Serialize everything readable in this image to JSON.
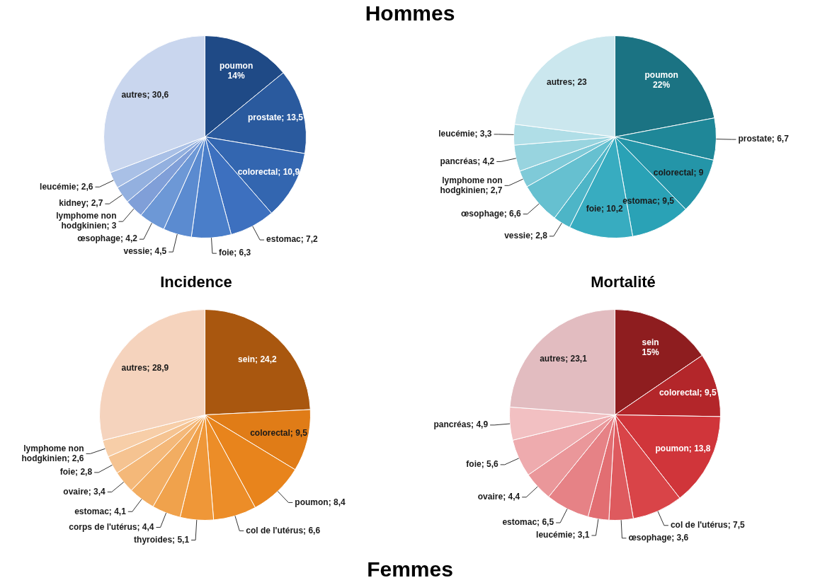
{
  "chart_data": [
    {
      "type": "pie",
      "categories": [
        "poumon",
        "prostate",
        "colorectal",
        "estomac",
        "foie",
        "vessie",
        "œsophage",
        "lymphome non hodgkinien",
        "kidney",
        "leucémie",
        "autres"
      ],
      "values": [
        14,
        13.5,
        10.9,
        7.2,
        6.3,
        4.5,
        4.2,
        3,
        2.7,
        2.6,
        30.6
      ],
      "value_labels": [
        "14%",
        "13,5",
        "10,9",
        "7,2",
        "6,3",
        "4,5",
        "4,2",
        "3",
        "2,7",
        "2,6",
        "30,6"
      ],
      "colors": [
        "#1f4a86",
        "#2a5a9e",
        "#3366b0",
        "#3d70bf",
        "#4a7ec9",
        "#5b8bd0",
        "#6d98d6",
        "#809fd8",
        "#93b0df",
        "#a9c0e6",
        "#c9d6ee"
      ]
    },
    {
      "type": "pie",
      "categories": [
        "poumon",
        "prostate",
        "colorectal",
        "estomac",
        "foie",
        "vessie",
        "œsophage",
        "lymphome non hodgkinien",
        "pancréas",
        "leucémie",
        "autres"
      ],
      "values": [
        22,
        6.7,
        9,
        9.5,
        10.2,
        2.8,
        6.6,
        2.7,
        4.2,
        3.3,
        23
      ],
      "value_labels": [
        "22%",
        "6,7",
        "9",
        "9,5",
        "10,2",
        "2,8",
        "6,6",
        "2,7",
        "4,2",
        "3,3",
        "23"
      ],
      "colors": [
        "#1b7383",
        "#1f8798",
        "#2495a8",
        "#2aa2b6",
        "#38acc0",
        "#4db5c7",
        "#66c0d0",
        "#7fcad8",
        "#98d4df",
        "#b0dee7",
        "#cbe7ee"
      ]
    },
    {
      "type": "pie",
      "categories": [
        "sein",
        "colorectal",
        "poumon",
        "col de l'utérus",
        "thyroides",
        "corps de l'utérus",
        "estomac",
        "ovaire",
        "foie",
        "lymphome non hodgkinien",
        "autres"
      ],
      "values": [
        24.2,
        9.5,
        8.4,
        6.6,
        5.1,
        4.4,
        4.1,
        3.4,
        2.8,
        2.6,
        28.9
      ],
      "value_labels": [
        "24,2",
        "9,5",
        "8,4",
        "6,6",
        "5,1",
        "4,4",
        "4,1",
        "3,4",
        "2,8",
        "2,6",
        "28,9"
      ],
      "colors": [
        "#a9570f",
        "#e07c17",
        "#e8841c",
        "#ec8d28",
        "#ef9738",
        "#f0a24c",
        "#f2ad62",
        "#f4b879",
        "#f5c391",
        "#f7cea8",
        "#f5d3bd"
      ]
    },
    {
      "type": "pie",
      "categories": [
        "sein",
        "colorectal",
        "poumon",
        "col de l'utérus",
        "œsophage",
        "leucémie",
        "estomac",
        "ovaire",
        "foie",
        "pancréas",
        "autres"
      ],
      "values": [
        15,
        9.5,
        13.8,
        7.5,
        3.6,
        3.1,
        6.5,
        4.4,
        5.6,
        4.9,
        23.1
      ],
      "value_labels": [
        "15%",
        "9,5",
        "13,8",
        "7,5",
        "3,6",
        "3,1",
        "6,5",
        "4,4",
        "5,6",
        "4,9",
        "23,1"
      ],
      "colors": [
        "#8e1d1f",
        "#b3262a",
        "#d0353a",
        "#d94448",
        "#de5a5e",
        "#e26e72",
        "#e68286",
        "#ea979a",
        "#eeabae",
        "#f2c0c2",
        "#e2bcc0"
      ]
    },
    {
      "type": "other",
      "annotations": [
        "Hommes",
        "Incidence",
        "Mortalité",
        "Femmes"
      ]
    }
  ]
}
